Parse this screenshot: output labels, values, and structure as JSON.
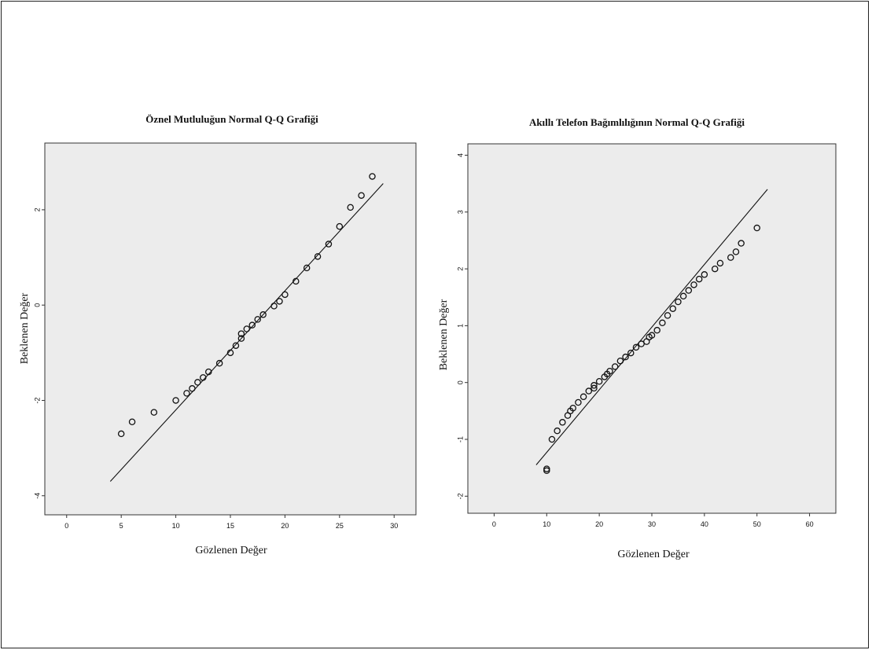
{
  "chart_data": [
    {
      "type": "scatter",
      "title": "Öznel Mutluluğun Normal Q-Q Grafiği",
      "xlabel": "Gözlenen Değer",
      "ylabel": "Beklenen Değer",
      "xlim": [
        -2,
        32
      ],
      "ylim": [
        -4.4,
        3.4
      ],
      "x_ticks": [
        0,
        5,
        10,
        15,
        20,
        25,
        30
      ],
      "y_ticks": [
        2,
        0,
        -2,
        -4
      ],
      "grid": false,
      "background": "#ececec",
      "reference_line": [
        [
          4,
          -3.7
        ],
        [
          29,
          2.55
        ]
      ],
      "series": [
        {
          "x": [
            5,
            6,
            8,
            10,
            11,
            11.5,
            12,
            12.5,
            13,
            14,
            15,
            15.5,
            16,
            16,
            16.5,
            17,
            17.5,
            18,
            19,
            19.5,
            20,
            21,
            22,
            23,
            24,
            25,
            26,
            27,
            28
          ],
          "y": [
            -2.7,
            -2.45,
            -2.25,
            -2.0,
            -1.85,
            -1.75,
            -1.62,
            -1.52,
            -1.4,
            -1.22,
            -1.0,
            -0.85,
            -0.7,
            -0.6,
            -0.5,
            -0.42,
            -0.3,
            -0.2,
            -0.02,
            0.08,
            0.22,
            0.5,
            0.78,
            1.02,
            1.28,
            1.65,
            2.05,
            2.3,
            2.7
          ]
        }
      ]
    },
    {
      "type": "scatter",
      "title": "Akıllı Telefon Bağımlılığının Normal Q-Q Grafiği",
      "xlabel": "Gözlenen Değer",
      "ylabel": "Beklenen Değer",
      "xlim": [
        -5,
        65
      ],
      "ylim": [
        -2.3,
        4.2
      ],
      "x_ticks": [
        0,
        10,
        20,
        30,
        40,
        50,
        60
      ],
      "y_ticks": [
        4,
        3,
        2,
        1,
        0,
        -1,
        -2
      ],
      "grid": false,
      "background": "#ececec",
      "reference_line": [
        [
          8,
          -1.45
        ],
        [
          52,
          3.4
        ]
      ],
      "series": [
        {
          "x": [
            10,
            10,
            11,
            12,
            13,
            14,
            14.5,
            15,
            16,
            17,
            18,
            19,
            19,
            20,
            21,
            21.5,
            22,
            23,
            24,
            25,
            26,
            27,
            28,
            29,
            29.5,
            30,
            31,
            32,
            33,
            34,
            35,
            36,
            37,
            38,
            39,
            40,
            42,
            43,
            45,
            46,
            47,
            50
          ],
          "y": [
            -1.52,
            -1.55,
            -1.0,
            -0.85,
            -0.7,
            -0.58,
            -0.5,
            -0.45,
            -0.35,
            -0.25,
            -0.15,
            -0.1,
            -0.05,
            0.02,
            0.1,
            0.15,
            0.2,
            0.28,
            0.38,
            0.45,
            0.52,
            0.62,
            0.68,
            0.72,
            0.8,
            0.83,
            0.92,
            1.05,
            1.18,
            1.3,
            1.42,
            1.52,
            1.62,
            1.72,
            1.82,
            1.9,
            2.0,
            2.1,
            2.2,
            2.3,
            2.45,
            2.72
          ]
        }
      ]
    }
  ]
}
